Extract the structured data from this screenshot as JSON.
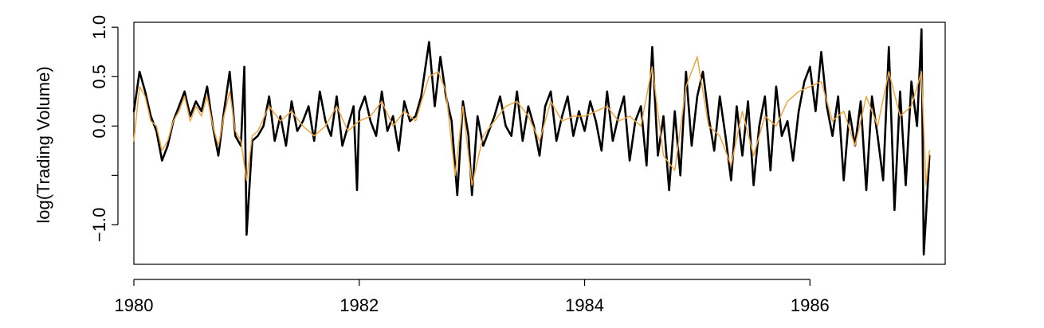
{
  "chart_data": {
    "type": "line",
    "title": "",
    "xlabel": "",
    "ylabel": "log(Trading Volume)",
    "xlim": [
      1980,
      1987.2
    ],
    "ylim": [
      -1.4,
      1.05
    ],
    "x_ticks": [
      1980,
      1982,
      1984,
      1986
    ],
    "x_tick_labels": [
      "1980",
      "1982",
      "1984",
      "1986"
    ],
    "y_ticks": [
      -1.0,
      -0.5,
      0.0,
      0.5,
      1.0
    ],
    "y_tick_labels": [
      "−1.0",
      "",
      "0.0",
      "0.5",
      "1.0"
    ],
    "grid": false,
    "legend": "none",
    "series": [
      {
        "color": "#000000",
        "x": [
          1980.0,
          1980.05,
          1980.1,
          1980.15,
          1980.2,
          1980.25,
          1980.3,
          1980.35,
          1980.4,
          1980.45,
          1980.5,
          1980.55,
          1980.6,
          1980.65,
          1980.7,
          1980.75,
          1980.8,
          1980.85,
          1980.9,
          1980.95,
          1980.98,
          1981.0,
          1981.05,
          1981.1,
          1981.15,
          1981.2,
          1981.25,
          1981.3,
          1981.35,
          1981.4,
          1981.45,
          1981.5,
          1981.55,
          1981.6,
          1981.65,
          1981.7,
          1981.75,
          1981.8,
          1981.85,
          1981.9,
          1981.95,
          1981.98,
          1982.0,
          1982.05,
          1982.1,
          1982.15,
          1982.2,
          1982.25,
          1982.3,
          1982.35,
          1982.4,
          1982.45,
          1982.5,
          1982.55,
          1982.62,
          1982.67,
          1982.72,
          1982.77,
          1982.82,
          1982.87,
          1982.92,
          1982.97,
          1983.0,
          1983.05,
          1983.1,
          1983.15,
          1983.2,
          1983.25,
          1983.3,
          1983.35,
          1983.4,
          1983.45,
          1983.5,
          1983.55,
          1983.6,
          1983.65,
          1983.7,
          1983.75,
          1983.8,
          1983.85,
          1983.9,
          1983.95,
          1984.0,
          1984.05,
          1984.1,
          1984.15,
          1984.2,
          1984.25,
          1984.3,
          1984.35,
          1984.4,
          1984.45,
          1984.5,
          1984.55,
          1984.6,
          1984.65,
          1984.7,
          1984.75,
          1984.8,
          1984.85,
          1984.9,
          1984.95,
          1985.0,
          1985.05,
          1985.1,
          1985.15,
          1985.2,
          1985.25,
          1985.3,
          1985.35,
          1985.4,
          1985.45,
          1985.5,
          1985.55,
          1985.6,
          1985.65,
          1985.7,
          1985.75,
          1985.8,
          1985.85,
          1985.9,
          1985.95,
          1986.0,
          1986.05,
          1986.1,
          1986.15,
          1986.2,
          1986.25,
          1986.3,
          1986.35,
          1986.4,
          1986.45,
          1986.5,
          1986.55,
          1986.6,
          1986.65,
          1986.7,
          1986.75,
          1986.8,
          1986.85,
          1986.9,
          1986.95,
          1986.99,
          1987.01,
          1987.03,
          1987.06
        ],
        "y": [
          0.15,
          0.55,
          0.35,
          0.1,
          -0.05,
          -0.35,
          -0.2,
          0.05,
          0.2,
          0.35,
          0.1,
          0.25,
          0.15,
          0.4,
          0.0,
          -0.3,
          0.15,
          0.55,
          -0.1,
          -0.2,
          0.6,
          -1.1,
          -0.15,
          -0.1,
          0.0,
          0.3,
          -0.15,
          0.1,
          -0.2,
          0.25,
          -0.05,
          0.05,
          0.2,
          -0.15,
          0.35,
          0.05,
          -0.1,
          0.3,
          -0.2,
          0.0,
          0.2,
          -0.65,
          0.15,
          0.3,
          0.05,
          -0.1,
          0.35,
          -0.05,
          0.1,
          -0.25,
          0.25,
          0.05,
          0.1,
          0.3,
          0.85,
          0.2,
          0.7,
          0.3,
          0.05,
          -0.7,
          0.25,
          -0.1,
          -0.7,
          0.1,
          -0.2,
          -0.05,
          0.1,
          0.3,
          0.0,
          -0.1,
          0.35,
          -0.15,
          0.2,
          0.0,
          -0.3,
          0.2,
          0.35,
          -0.15,
          0.1,
          0.3,
          -0.1,
          0.15,
          -0.05,
          0.25,
          0.05,
          -0.25,
          0.35,
          -0.15,
          0.1,
          0.3,
          -0.35,
          0.05,
          0.2,
          -0.4,
          0.8,
          -0.3,
          0.1,
          -0.65,
          0.15,
          -0.5,
          0.55,
          -0.2,
          0.3,
          0.55,
          0.1,
          -0.25,
          0.3,
          -0.1,
          -0.55,
          0.2,
          -0.3,
          0.25,
          -0.6,
          0.0,
          0.3,
          -0.45,
          0.4,
          -0.1,
          0.05,
          -0.35,
          0.15,
          0.45,
          0.6,
          0.15,
          0.75,
          0.2,
          -0.1,
          0.3,
          -0.55,
          0.15,
          -0.2,
          0.25,
          -0.65,
          0.3,
          -0.1,
          -0.55,
          0.8,
          -0.85,
          0.35,
          -0.6,
          0.45,
          0.0,
          0.98,
          -1.3,
          -0.9,
          -0.3
        ]
      },
      {
        "color": "#f0a43c",
        "x": [
          1980.0,
          1980.05,
          1980.1,
          1980.15,
          1980.2,
          1980.25,
          1980.3,
          1980.35,
          1980.4,
          1980.45,
          1980.5,
          1980.55,
          1980.6,
          1980.65,
          1980.7,
          1980.75,
          1980.8,
          1980.85,
          1980.9,
          1980.95,
          1981.0,
          1981.05,
          1981.1,
          1981.2,
          1981.3,
          1981.4,
          1981.5,
          1981.6,
          1981.7,
          1981.8,
          1981.9,
          1982.0,
          1982.1,
          1982.2,
          1982.3,
          1982.4,
          1982.5,
          1982.62,
          1982.7,
          1982.77,
          1982.85,
          1982.92,
          1983.0,
          1983.1,
          1983.2,
          1983.3,
          1983.4,
          1983.5,
          1983.6,
          1983.7,
          1983.8,
          1983.9,
          1984.0,
          1984.1,
          1984.2,
          1984.3,
          1984.4,
          1984.5,
          1984.6,
          1984.7,
          1984.8,
          1984.9,
          1985.0,
          1985.1,
          1985.2,
          1985.3,
          1985.4,
          1985.5,
          1985.6,
          1985.7,
          1985.8,
          1985.9,
          1986.0,
          1986.1,
          1986.2,
          1986.3,
          1986.4,
          1986.5,
          1986.6,
          1986.7,
          1986.8,
          1986.9,
          1986.99,
          1987.03,
          1987.06
        ],
        "y": [
          -0.15,
          0.4,
          0.3,
          0.05,
          0.0,
          -0.25,
          -0.15,
          0.05,
          0.15,
          0.3,
          0.05,
          0.2,
          0.1,
          0.3,
          0.0,
          -0.2,
          0.1,
          0.35,
          -0.05,
          -0.15,
          -0.55,
          -0.1,
          -0.05,
          0.2,
          0.05,
          0.15,
          0.0,
          -0.1,
          0.0,
          0.2,
          -0.05,
          0.05,
          0.1,
          0.25,
          0.0,
          0.15,
          0.05,
          0.5,
          0.55,
          0.35,
          -0.5,
          0.2,
          -0.6,
          -0.1,
          0.05,
          0.2,
          0.25,
          0.1,
          -0.15,
          0.25,
          0.05,
          0.1,
          0.1,
          0.15,
          0.2,
          0.05,
          0.1,
          0.0,
          0.6,
          -0.3,
          -0.45,
          0.4,
          0.7,
          0.0,
          -0.1,
          -0.4,
          0.15,
          -0.3,
          0.1,
          0.0,
          0.25,
          0.35,
          0.4,
          0.45,
          0.05,
          0.15,
          -0.2,
          0.3,
          0.0,
          0.55,
          0.1,
          0.2,
          0.55,
          -0.6,
          -0.25
        ]
      }
    ]
  }
}
